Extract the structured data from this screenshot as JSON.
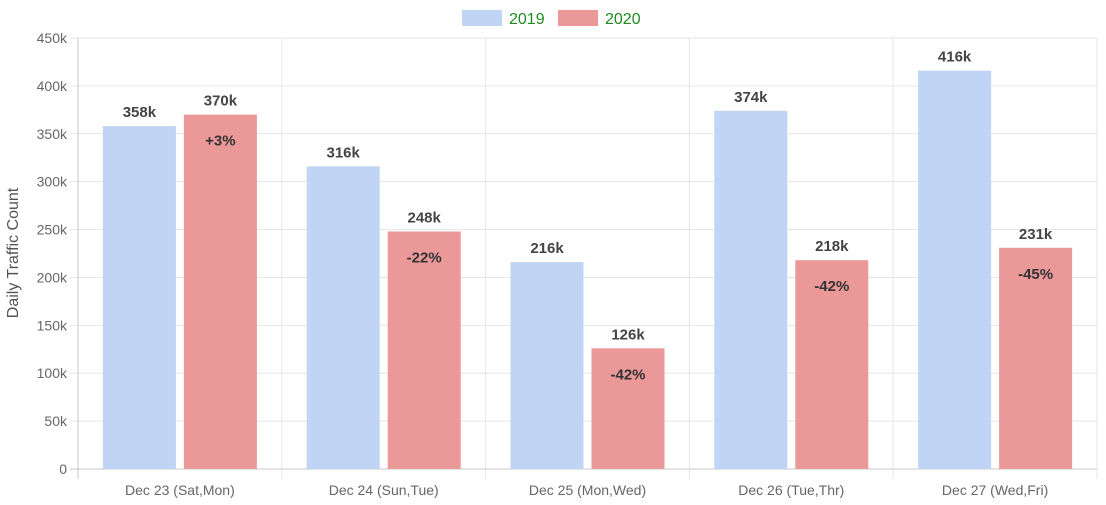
{
  "chart_data": {
    "type": "bar",
    "ylabel": "Daily Traffic Count",
    "xlabel": "",
    "ylim": [
      0,
      450000
    ],
    "y_ticks": [
      {
        "value": 0,
        "label": "0"
      },
      {
        "value": 50000,
        "label": "50k"
      },
      {
        "value": 100000,
        "label": "100k"
      },
      {
        "value": 150000,
        "label": "150k"
      },
      {
        "value": 200000,
        "label": "200k"
      },
      {
        "value": 250000,
        "label": "250k"
      },
      {
        "value": 300000,
        "label": "300k"
      },
      {
        "value": 350000,
        "label": "350k"
      },
      {
        "value": 400000,
        "label": "400k"
      },
      {
        "value": 450000,
        "label": "450k"
      }
    ],
    "grid": true,
    "legend_position": "top",
    "categories": [
      "Dec 23 (Sat,Mon)",
      "Dec 24 (Sun,Tue)",
      "Dec 25 (Mon,Wed)",
      "Dec 26 (Tue,Thr)",
      "Dec 27 (Wed,Fri)"
    ],
    "series": [
      {
        "name": "2019",
        "color": "#c0d4f6",
        "legend_text_color": "#1f8a1f",
        "values": [
          358000,
          316000,
          216000,
          374000,
          416000
        ],
        "value_labels": [
          "358k",
          "316k",
          "216k",
          "374k",
          "416k"
        ]
      },
      {
        "name": "2020",
        "color": "#ea9898",
        "legend_text_color": "#1f8a1f",
        "values": [
          370000,
          248000,
          126000,
          218000,
          231000
        ],
        "value_labels": [
          "370k",
          "248k",
          "126k",
          "218k",
          "231k"
        ],
        "change_labels": [
          "+3%",
          "-22%",
          "-42%",
          "-42%",
          "-45%"
        ]
      }
    ]
  }
}
